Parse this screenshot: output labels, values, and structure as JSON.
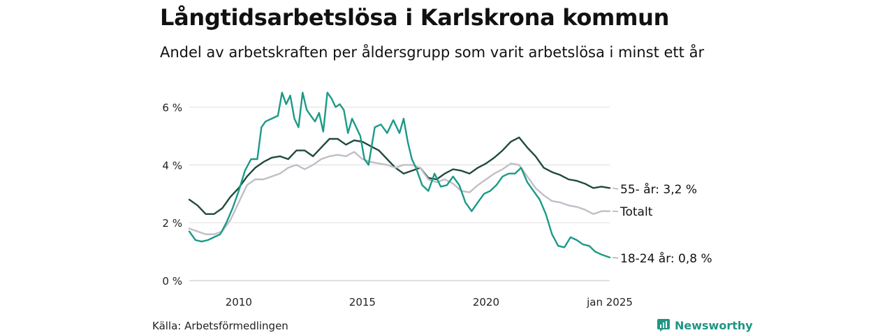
{
  "title": "Långtidsarbetslösa i Karlskrona kommun",
  "subtitle": "Andel av arbetskraften per åldersgrupp som varit arbetslösa i minst ett år",
  "source": "Källa: Arbetsförmedlingen",
  "brand": {
    "name": "Newsworthy",
    "icon": "newsworthy-logo-icon",
    "color": "#1e9685"
  },
  "chart_data": {
    "type": "line",
    "x_range": [
      "2008-01",
      "2025-01"
    ],
    "x_tick_labels": [
      "2010",
      "2015",
      "2020",
      "jan 2025"
    ],
    "x_tick_values": [
      "2010-01",
      "2015-01",
      "2020-01",
      "2025-01"
    ],
    "y_range": [
      0,
      7
    ],
    "y_unit": "%",
    "y_ticks": [
      0,
      2,
      4,
      6
    ],
    "y_tick_labels": [
      "0 %",
      "2 %",
      "4 %",
      "6 %"
    ],
    "grid": true,
    "legend": "end-labels",
    "series": [
      {
        "name": "55- år",
        "end_label": "55- år: 3,2 %",
        "color": "#1f4a3c",
        "points": [
          [
            "2008-01",
            2.8
          ],
          [
            "2008-05",
            2.6
          ],
          [
            "2008-09",
            2.3
          ],
          [
            "2009-01",
            2.3
          ],
          [
            "2009-05",
            2.5
          ],
          [
            "2009-09",
            2.9
          ],
          [
            "2010-01",
            3.2
          ],
          [
            "2010-05",
            3.6
          ],
          [
            "2010-09",
            3.9
          ],
          [
            "2011-01",
            4.1
          ],
          [
            "2011-05",
            4.25
          ],
          [
            "2011-09",
            4.3
          ],
          [
            "2012-01",
            4.2
          ],
          [
            "2012-05",
            4.5
          ],
          [
            "2012-09",
            4.5
          ],
          [
            "2013-01",
            4.3
          ],
          [
            "2013-05",
            4.6
          ],
          [
            "2013-09",
            4.9
          ],
          [
            "2014-01",
            4.9
          ],
          [
            "2014-05",
            4.7
          ],
          [
            "2014-09",
            4.85
          ],
          [
            "2015-01",
            4.8
          ],
          [
            "2015-05",
            4.65
          ],
          [
            "2015-09",
            4.5
          ],
          [
            "2016-01",
            4.2
          ],
          [
            "2016-05",
            3.9
          ],
          [
            "2016-09",
            3.7
          ],
          [
            "2017-01",
            3.8
          ],
          [
            "2017-05",
            3.9
          ],
          [
            "2017-09",
            3.55
          ],
          [
            "2018-01",
            3.5
          ],
          [
            "2018-05",
            3.7
          ],
          [
            "2018-09",
            3.85
          ],
          [
            "2019-01",
            3.8
          ],
          [
            "2019-05",
            3.7
          ],
          [
            "2019-09",
            3.9
          ],
          [
            "2020-01",
            4.05
          ],
          [
            "2020-05",
            4.25
          ],
          [
            "2020-09",
            4.5
          ],
          [
            "2021-01",
            4.8
          ],
          [
            "2021-05",
            4.95
          ],
          [
            "2021-09",
            4.6
          ],
          [
            "2022-01",
            4.3
          ],
          [
            "2022-05",
            3.9
          ],
          [
            "2022-09",
            3.75
          ],
          [
            "2023-01",
            3.65
          ],
          [
            "2023-05",
            3.5
          ],
          [
            "2023-09",
            3.45
          ],
          [
            "2024-01",
            3.35
          ],
          [
            "2024-05",
            3.2
          ],
          [
            "2024-09",
            3.25
          ],
          [
            "2025-01",
            3.2
          ]
        ]
      },
      {
        "name": "Totalt",
        "end_label": "Totalt",
        "color": "#c2bdc7",
        "points": [
          [
            "2008-01",
            1.8
          ],
          [
            "2008-05",
            1.7
          ],
          [
            "2008-09",
            1.6
          ],
          [
            "2009-01",
            1.6
          ],
          [
            "2009-05",
            1.7
          ],
          [
            "2009-09",
            2.1
          ],
          [
            "2010-01",
            2.7
          ],
          [
            "2010-05",
            3.3
          ],
          [
            "2010-09",
            3.5
          ],
          [
            "2011-01",
            3.5
          ],
          [
            "2011-05",
            3.6
          ],
          [
            "2011-09",
            3.7
          ],
          [
            "2012-01",
            3.9
          ],
          [
            "2012-05",
            4.0
          ],
          [
            "2012-09",
            3.85
          ],
          [
            "2013-01",
            4.0
          ],
          [
            "2013-05",
            4.2
          ],
          [
            "2013-09",
            4.3
          ],
          [
            "2014-01",
            4.35
          ],
          [
            "2014-05",
            4.3
          ],
          [
            "2014-09",
            4.45
          ],
          [
            "2015-01",
            4.2
          ],
          [
            "2015-05",
            4.1
          ],
          [
            "2015-09",
            4.05
          ],
          [
            "2016-01",
            4.0
          ],
          [
            "2016-05",
            3.9
          ],
          [
            "2016-09",
            4.0
          ],
          [
            "2017-01",
            4.0
          ],
          [
            "2017-05",
            3.9
          ],
          [
            "2017-09",
            3.5
          ],
          [
            "2018-01",
            3.4
          ],
          [
            "2018-05",
            3.5
          ],
          [
            "2018-09",
            3.35
          ],
          [
            "2019-01",
            3.1
          ],
          [
            "2019-05",
            3.05
          ],
          [
            "2019-09",
            3.3
          ],
          [
            "2020-01",
            3.5
          ],
          [
            "2020-05",
            3.7
          ],
          [
            "2020-09",
            3.85
          ],
          [
            "2021-01",
            4.05
          ],
          [
            "2021-05",
            4.0
          ],
          [
            "2021-09",
            3.6
          ],
          [
            "2022-01",
            3.2
          ],
          [
            "2022-05",
            2.95
          ],
          [
            "2022-09",
            2.75
          ],
          [
            "2023-01",
            2.7
          ],
          [
            "2023-05",
            2.6
          ],
          [
            "2023-09",
            2.55
          ],
          [
            "2024-01",
            2.45
          ],
          [
            "2024-05",
            2.3
          ],
          [
            "2024-09",
            2.4
          ],
          [
            "2025-01",
            2.4
          ]
        ]
      },
      {
        "name": "18-24 år",
        "end_label": "18-24 år: 0,8 %",
        "color": "#1b9a87",
        "points": [
          [
            "2008-01",
            1.7
          ],
          [
            "2008-04",
            1.4
          ],
          [
            "2008-07",
            1.35
          ],
          [
            "2008-10",
            1.4
          ],
          [
            "2009-01",
            1.5
          ],
          [
            "2009-04",
            1.6
          ],
          [
            "2009-07",
            2.0
          ],
          [
            "2009-10",
            2.5
          ],
          [
            "2010-01",
            3.1
          ],
          [
            "2010-04",
            3.8
          ],
          [
            "2010-07",
            4.2
          ],
          [
            "2010-10",
            4.2
          ],
          [
            "2010-12",
            5.3
          ],
          [
            "2011-02",
            5.5
          ],
          [
            "2011-05",
            5.6
          ],
          [
            "2011-08",
            5.7
          ],
          [
            "2011-10",
            6.5
          ],
          [
            "2011-12",
            6.1
          ],
          [
            "2012-02",
            6.4
          ],
          [
            "2012-04",
            5.6
          ],
          [
            "2012-06",
            5.3
          ],
          [
            "2012-08",
            6.5
          ],
          [
            "2012-10",
            5.9
          ],
          [
            "2012-12",
            5.7
          ],
          [
            "2013-02",
            5.5
          ],
          [
            "2013-04",
            5.8
          ],
          [
            "2013-06",
            5.15
          ],
          [
            "2013-08",
            6.5
          ],
          [
            "2013-10",
            6.3
          ],
          [
            "2013-12",
            6.0
          ],
          [
            "2014-02",
            6.1
          ],
          [
            "2014-04",
            5.9
          ],
          [
            "2014-06",
            5.1
          ],
          [
            "2014-08",
            5.6
          ],
          [
            "2014-10",
            5.3
          ],
          [
            "2014-12",
            5.0
          ],
          [
            "2015-02",
            4.2
          ],
          [
            "2015-04",
            4.0
          ],
          [
            "2015-07",
            5.3
          ],
          [
            "2015-10",
            5.4
          ],
          [
            "2016-01",
            5.1
          ],
          [
            "2016-04",
            5.55
          ],
          [
            "2016-07",
            5.1
          ],
          [
            "2016-09",
            5.6
          ],
          [
            "2016-11",
            4.8
          ],
          [
            "2017-01",
            4.2
          ],
          [
            "2017-03",
            3.9
          ],
          [
            "2017-06",
            3.3
          ],
          [
            "2017-09",
            3.1
          ],
          [
            "2017-12",
            3.7
          ],
          [
            "2018-03",
            3.25
          ],
          [
            "2018-06",
            3.3
          ],
          [
            "2018-09",
            3.6
          ],
          [
            "2018-12",
            3.3
          ],
          [
            "2019-03",
            2.7
          ],
          [
            "2019-06",
            2.4
          ],
          [
            "2019-09",
            2.7
          ],
          [
            "2019-12",
            3.0
          ],
          [
            "2020-03",
            3.1
          ],
          [
            "2020-06",
            3.3
          ],
          [
            "2020-09",
            3.6
          ],
          [
            "2020-12",
            3.7
          ],
          [
            "2021-03",
            3.7
          ],
          [
            "2021-06",
            3.9
          ],
          [
            "2021-09",
            3.4
          ],
          [
            "2021-12",
            3.1
          ],
          [
            "2022-03",
            2.8
          ],
          [
            "2022-06",
            2.3
          ],
          [
            "2022-09",
            1.6
          ],
          [
            "2022-12",
            1.2
          ],
          [
            "2023-03",
            1.15
          ],
          [
            "2023-06",
            1.5
          ],
          [
            "2023-09",
            1.4
          ],
          [
            "2023-12",
            1.25
          ],
          [
            "2024-03",
            1.2
          ],
          [
            "2024-06",
            1.0
          ],
          [
            "2024-09",
            0.9
          ],
          [
            "2025-01",
            0.8
          ]
        ]
      }
    ]
  }
}
